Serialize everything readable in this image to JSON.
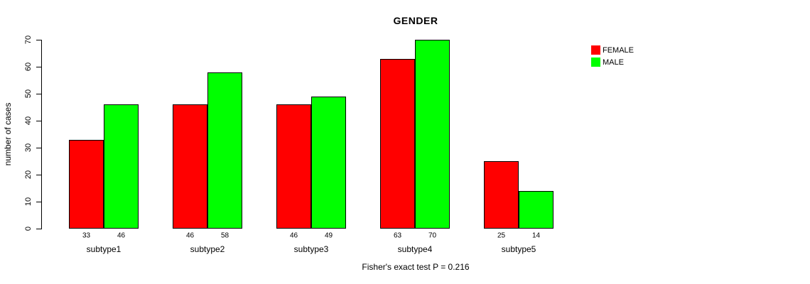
{
  "chart_data": {
    "type": "bar",
    "title": "GENDER",
    "ylabel": "number of cases",
    "xlabel": "",
    "categories": [
      "subtype1",
      "subtype2",
      "subtype3",
      "subtype4",
      "subtype5"
    ],
    "series": [
      {
        "name": "FEMALE",
        "color": "#ff0000",
        "values": [
          33,
          46,
          46,
          63,
          25
        ]
      },
      {
        "name": "MALE",
        "color": "#00ff00",
        "values": [
          46,
          58,
          49,
          70,
          14
        ]
      }
    ],
    "ylim": [
      0,
      70
    ],
    "yticks": [
      0,
      10,
      20,
      30,
      40,
      50,
      60,
      70
    ],
    "grid": false,
    "bar_borders": "#000000",
    "value_labels_shown": true,
    "legend_position": "top-right",
    "caption": "Fisher's exact test P = 0.216"
  }
}
